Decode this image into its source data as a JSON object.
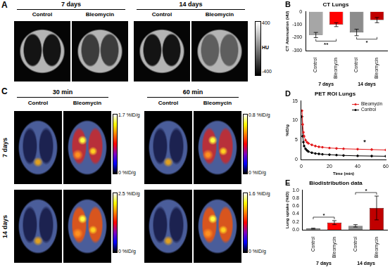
{
  "figure": {
    "panel_A": {
      "letter": "A",
      "columns": [
        "7 days",
        "14 days"
      ],
      "groups": [
        "Control",
        "Bleomycin"
      ],
      "colorbar": {
        "max": "400",
        "min": "-400",
        "label": "HU"
      }
    },
    "panel_C": {
      "letter": "C",
      "columns": [
        "30 min",
        "60 min"
      ],
      "groups": [
        "Control",
        "Bleomycin"
      ],
      "rows": [
        "7 days",
        "14 days"
      ],
      "colorbars": [
        [
          "1.7 %ID/g",
          "0 %ID/g"
        ],
        [
          "0.8 %ID/g",
          "0 %ID/g"
        ],
        [
          "2.5 %ID/g",
          "0 %ID/g"
        ],
        [
          "1.6 %ID/g",
          "0 %ID/g"
        ]
      ]
    }
  },
  "chart_data": [
    {
      "panel": "B",
      "type": "bar",
      "title": "CT Lungs",
      "y_label": "CT Attenuation (HU)",
      "categories": [
        "Control",
        "Bleomycin",
        "Control",
        "Bleomycin"
      ],
      "groups": [
        "7 days",
        "14 days"
      ],
      "values": [
        -180,
        -100,
        -160,
        -65
      ],
      "errors": [
        20,
        15,
        25,
        20
      ],
      "colors": [
        "#a6a6a6",
        "#ff0000",
        "#8c8c8c",
        "#c00000"
      ],
      "ylim": [
        -300,
        0
      ],
      "yticks": [
        -300,
        -200,
        -100,
        0
      ],
      "significance": [
        {
          "pair": [
            0,
            1
          ],
          "label": "**"
        },
        {
          "pair": [
            2,
            3
          ],
          "label": "*"
        }
      ],
      "grid": false
    },
    {
      "panel": "D",
      "type": "line",
      "title": "PET ROI Lungs",
      "x_label": "Time (min)",
      "y_label": "%ID/g",
      "x": [
        0.5,
        1,
        1.5,
        2,
        3,
        4,
        5,
        7.5,
        10,
        12.5,
        15,
        20,
        25,
        30,
        40,
        50,
        60
      ],
      "series": [
        {
          "name": "Bleomycin",
          "color": "#e31a1c",
          "values": [
            12.5,
            9,
            7,
            6,
            5,
            4.5,
            4.2,
            3.8,
            3.5,
            3.3,
            3.2,
            3.0,
            2.9,
            2.8,
            2.7,
            2.6,
            2.5
          ]
        },
        {
          "name": "Control",
          "color": "#000000",
          "values": [
            11,
            6,
            4.5,
            3.5,
            2.8,
            2.4,
            2.1,
            1.8,
            1.6,
            1.5,
            1.4,
            1.3,
            1.2,
            1.1,
            1.0,
            0.95,
            0.9
          ]
        }
      ],
      "xlim": [
        0,
        60
      ],
      "xticks": [
        0,
        20,
        40,
        60
      ],
      "ylim": [
        0,
        15
      ],
      "yticks": [
        0,
        5,
        10,
        15
      ],
      "legend": "top-right",
      "marker": "circle",
      "grid": false,
      "annotations": [
        {
          "x": 45,
          "y": 4.5,
          "text": "*"
        }
      ]
    },
    {
      "panel": "E",
      "type": "bar",
      "title": "Biodistribution data",
      "y_label": "Lung uptake (%ID)",
      "categories": [
        "Control",
        "Bleomycin",
        "Control",
        "Bleomycin"
      ],
      "groups": [
        "7 days",
        "14 days"
      ],
      "values": [
        0.03,
        0.18,
        0.1,
        0.55
      ],
      "errors": [
        0.01,
        0.05,
        0.03,
        0.3
      ],
      "colors": [
        "#a6a6a6",
        "#ff0000",
        "#8c8c8c",
        "#c00000"
      ],
      "ylim": [
        0,
        1
      ],
      "yticks": [
        {
          "value": 0,
          "label": "0.0"
        },
        0.2,
        0.4,
        0.6,
        0.8,
        {
          "value": 1,
          "label": "1.0"
        }
      ],
      "significance": [
        {
          "pair": [
            0,
            1
          ],
          "label": "*"
        },
        {
          "pair": [
            2,
            3
          ],
          "label": "*"
        }
      ],
      "grid": false
    }
  ]
}
